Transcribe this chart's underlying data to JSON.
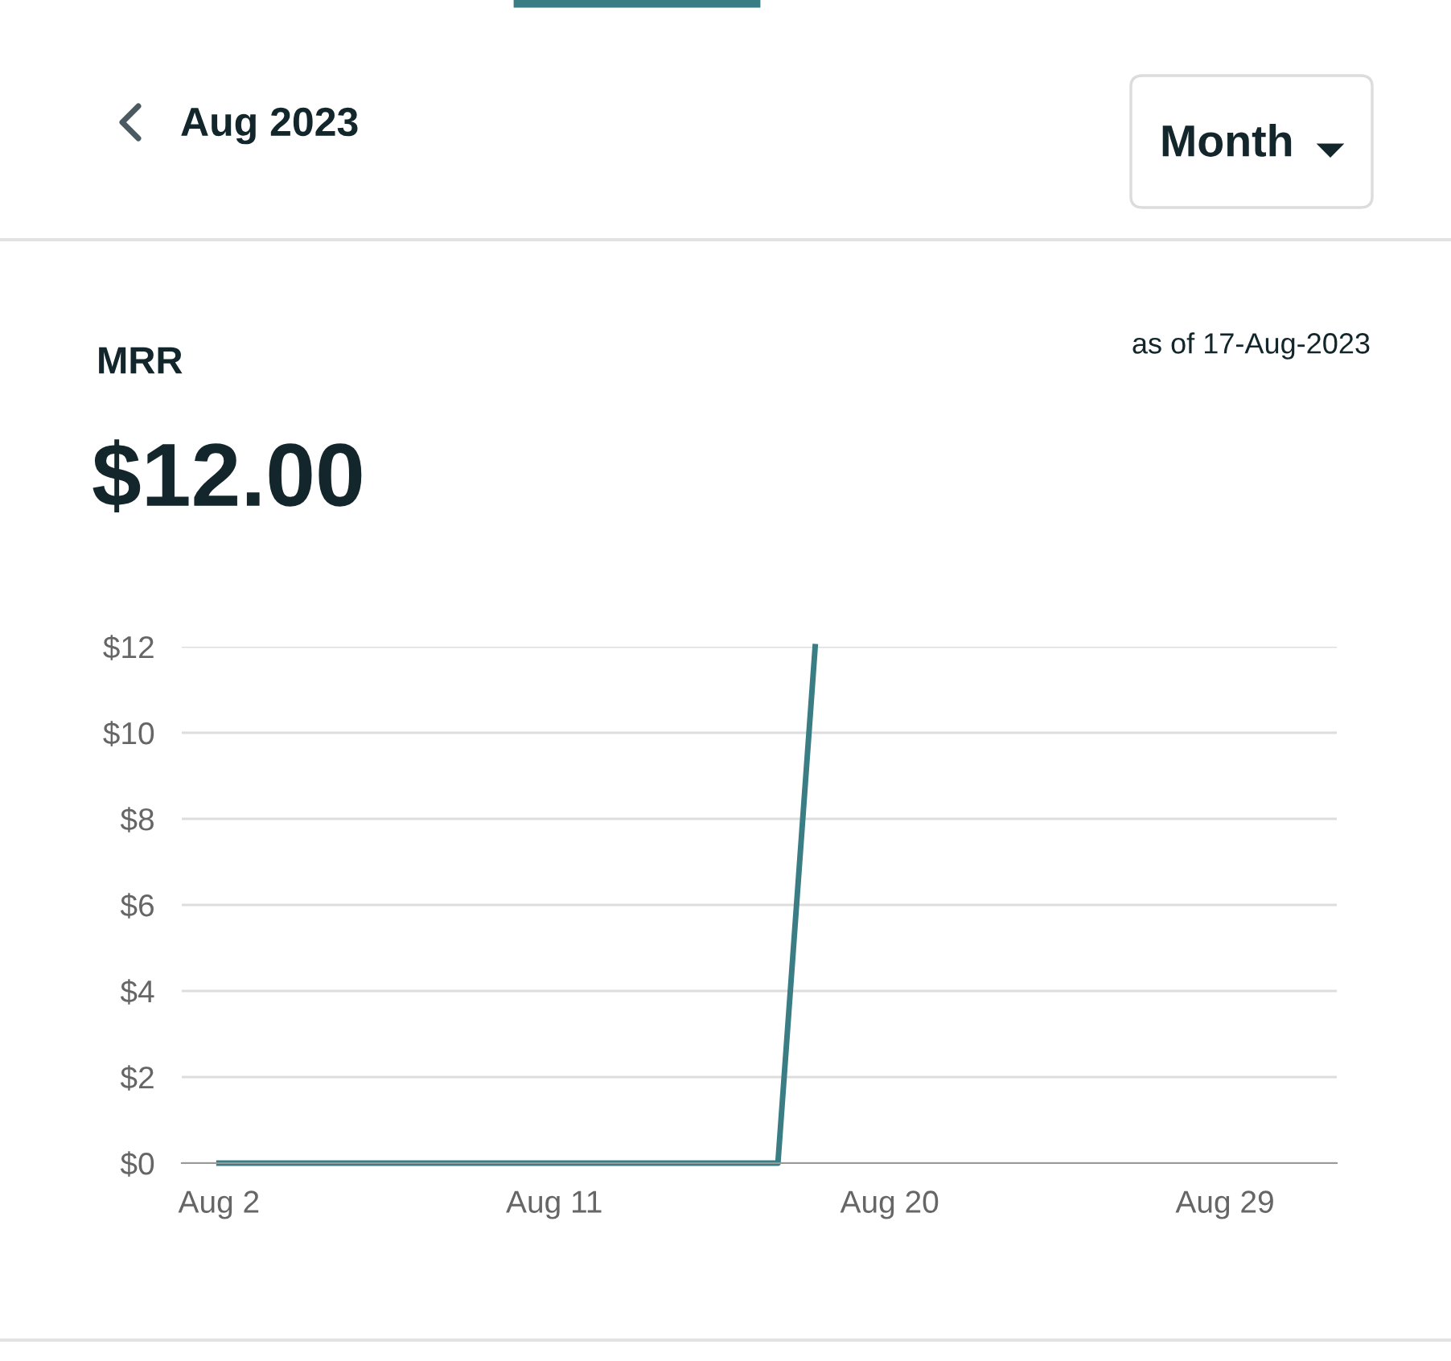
{
  "chart_data": {
    "type": "line",
    "title": "MRR",
    "subtitle": "$12.00",
    "annotations": [
      "Aug 2023",
      "Month",
      "as of 17-Aug-2023"
    ],
    "x": [
      "2023-08-02",
      "2023-08-03",
      "2023-08-04",
      "2023-08-05",
      "2023-08-06",
      "2023-08-07",
      "2023-08-08",
      "2023-08-09",
      "2023-08-10",
      "2023-08-11",
      "2023-08-12",
      "2023-08-13",
      "2023-08-14",
      "2023-08-15",
      "2023-08-16",
      "2023-08-17",
      "2023-08-18"
    ],
    "series": [
      {
        "color": "#3a7d85",
        "values": [
          0,
          0,
          0,
          0,
          0,
          0,
          0,
          0,
          0,
          0,
          0,
          0,
          0,
          0,
          0,
          0,
          12
        ]
      }
    ],
    "xlim": [
      "2023-08-01",
      "2023-09-01"
    ],
    "xticks": [
      {
        "value": "2023-08-02",
        "label": "Aug 2"
      },
      {
        "value": "2023-08-11",
        "label": "Aug 11"
      },
      {
        "value": "2023-08-20",
        "label": "Aug 20"
      },
      {
        "value": "2023-08-29",
        "label": "Aug 29"
      }
    ],
    "ylim": [
      0,
      12
    ],
    "yticks": [
      {
        "value": 0,
        "label": "$0"
      },
      {
        "value": 2,
        "label": "$2"
      },
      {
        "value": 4,
        "label": "$4"
      },
      {
        "value": 6,
        "label": "$6"
      },
      {
        "value": 8,
        "label": "$8"
      },
      {
        "value": 10,
        "label": "$10"
      },
      {
        "value": 12,
        "label": "$12"
      }
    ],
    "grid": "y",
    "legend": false,
    "marker": "none",
    "line_style": "solid"
  }
}
